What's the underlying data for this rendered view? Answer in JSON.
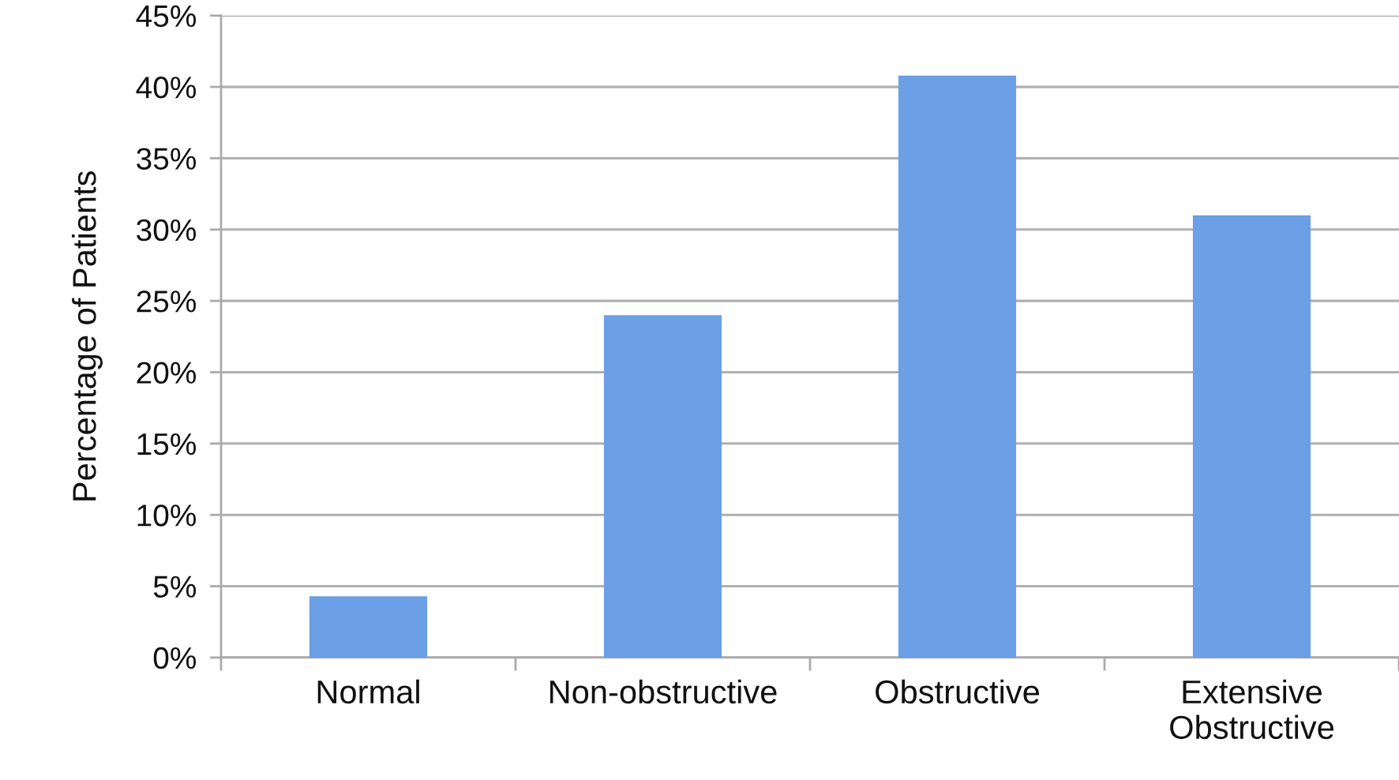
{
  "chart_data": {
    "type": "bar",
    "ylabel": "Percentage of Patients",
    "categories": [
      "Normal",
      "Non-obstructive",
      "Obstructive",
      "Extensive\nObstructive"
    ],
    "values": [
      4.3,
      24,
      40.8,
      31
    ],
    "color": "#6b9fe6",
    "ylim": [
      0,
      45
    ],
    "yticks": [
      {
        "value": 0,
        "label": "0%"
      },
      {
        "value": 5,
        "label": "5%"
      },
      {
        "value": 10,
        "label": "10%"
      },
      {
        "value": 15,
        "label": "15%"
      },
      {
        "value": 20,
        "label": "20%"
      },
      {
        "value": 25,
        "label": "25%"
      },
      {
        "value": 30,
        "label": "30%"
      },
      {
        "value": 35,
        "label": "35%"
      },
      {
        "value": 40,
        "label": "40%"
      },
      {
        "value": 45,
        "label": "45%"
      }
    ],
    "grid": "y"
  }
}
